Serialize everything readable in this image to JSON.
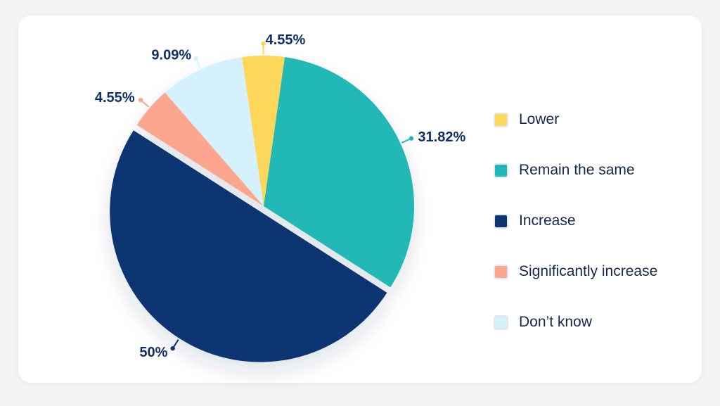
{
  "chart_data": {
    "type": "pie",
    "slices": [
      {
        "name": "Lower",
        "value": 4.55,
        "label": "4.55%",
        "color": "#fdd75a"
      },
      {
        "name": "Remain the same",
        "value": 31.82,
        "label": "31.82%",
        "color": "#20b8b6"
      },
      {
        "name": "Increase",
        "value": 50,
        "label": "50%",
        "color": "#0c3572"
      },
      {
        "name": "Significantly increase",
        "value": 4.55,
        "label": "4.55%",
        "color": "#fda68f"
      },
      {
        "name": "Don’t know",
        "value": 9.09,
        "label": "9.09%",
        "color": "#d5f1fb"
      }
    ],
    "exploded_slice": "Increase",
    "legend_position": "right",
    "label_color": "#0d3068"
  }
}
